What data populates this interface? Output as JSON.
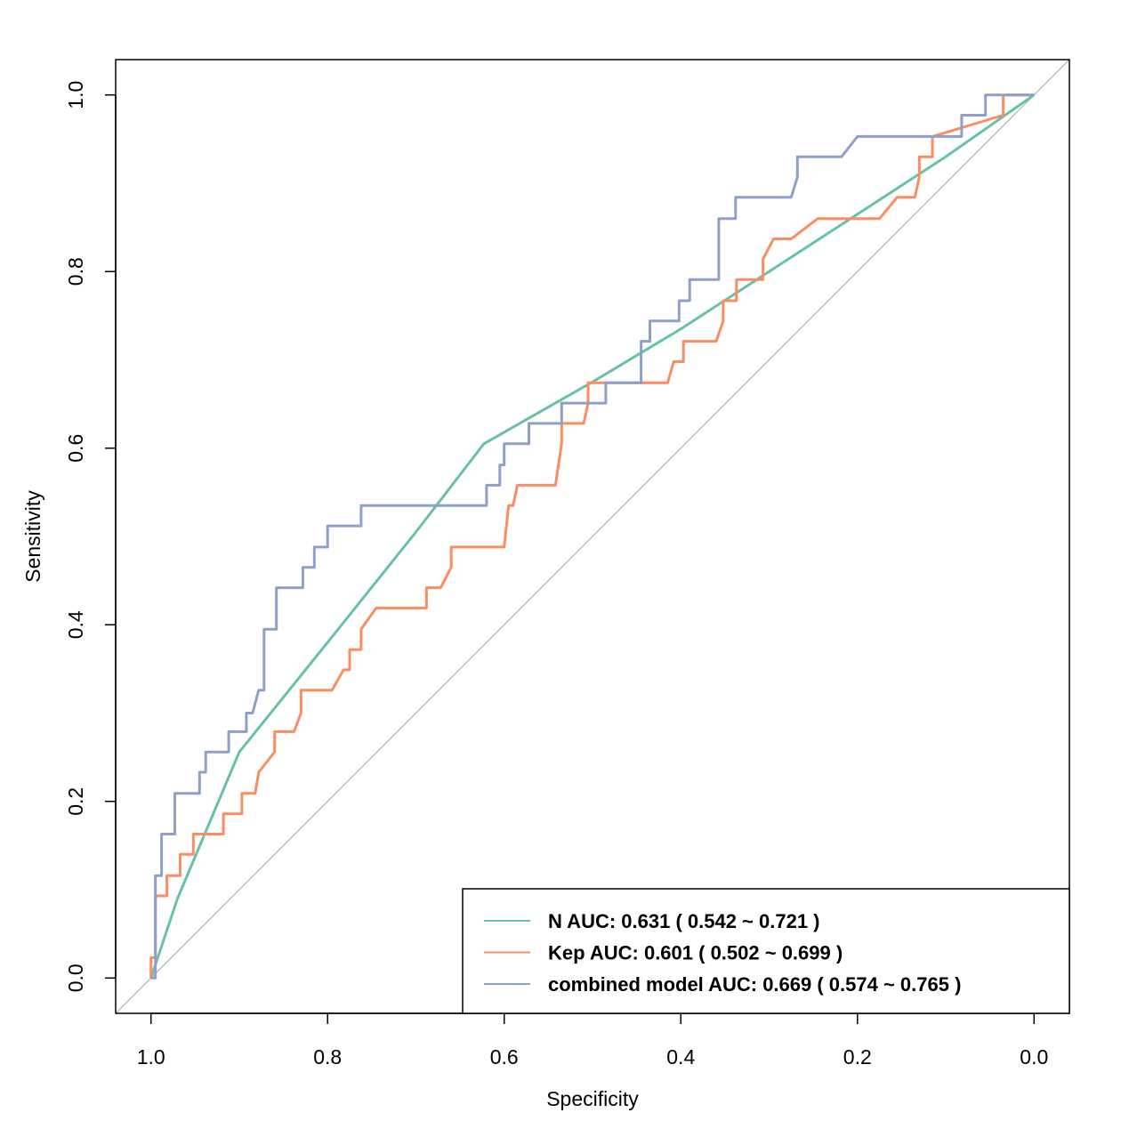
{
  "chart_data": {
    "type": "line",
    "title": "",
    "xlabel": "Specificity",
    "ylabel": "Sensitivity",
    "xlim": [
      1.04,
      -0.04
    ],
    "ylim": [
      -0.04,
      1.04
    ],
    "x_reversed": true,
    "xticks": [
      1.0,
      0.8,
      0.6,
      0.4,
      0.2,
      0.0
    ],
    "xtick_labels": [
      "1.0",
      "0.8",
      "0.6",
      "0.4",
      "0.2",
      "0.0"
    ],
    "yticks": [
      0.0,
      0.2,
      0.4,
      0.6,
      0.8,
      1.0
    ],
    "ytick_labels": [
      "0.0",
      "0.2",
      "0.4",
      "0.6",
      "0.8",
      "1.0"
    ],
    "reference_line": {
      "from": [
        1,
        0
      ],
      "to": [
        0,
        1
      ],
      "color": "#BEBEBE"
    },
    "legend_position": "bottom-right",
    "series": [
      {
        "name": "N",
        "legend_label": "N  AUC: 0.631  ( 0.542 ~ 0.721 )",
        "color": "#66C2A5",
        "x": [
          1.0,
          0.97,
          0.9,
          0.8,
          0.7,
          0.623,
          0.5,
          0.4,
          0.3,
          0.2,
          0.1,
          0.0
        ],
        "y": [
          0.0,
          0.09,
          0.256,
          0.38,
          0.505,
          0.605,
          0.675,
          0.735,
          0.8,
          0.865,
          0.93,
          1.0
        ]
      },
      {
        "name": "Kep",
        "legend_label": "Kep  AUC: 0.601  ( 0.502 ~ 0.699 )",
        "color": "#FC8D62",
        "x": [
          1.0,
          1.0,
          0.995,
          0.995,
          0.982,
          0.982,
          0.967,
          0.967,
          0.952,
          0.952,
          0.918,
          0.918,
          0.897,
          0.897,
          0.882,
          0.878,
          0.86,
          0.86,
          0.838,
          0.83,
          0.83,
          0.795,
          0.782,
          0.775,
          0.775,
          0.762,
          0.762,
          0.745,
          0.688,
          0.688,
          0.672,
          0.66,
          0.66,
          0.6,
          0.595,
          0.59,
          0.585,
          0.585,
          0.542,
          0.535,
          0.535,
          0.51,
          0.505,
          0.505,
          0.49,
          0.49,
          0.415,
          0.408,
          0.408,
          0.397,
          0.397,
          0.36,
          0.352,
          0.352,
          0.337,
          0.337,
          0.307,
          0.307,
          0.295,
          0.295,
          0.275,
          0.245,
          0.188,
          0.175,
          0.155,
          0.135,
          0.13,
          0.13,
          0.115,
          0.115,
          0.035,
          0.035,
          0.0
        ],
        "y": [
          0.0,
          0.023,
          0.023,
          0.093,
          0.093,
          0.116,
          0.116,
          0.14,
          0.14,
          0.163,
          0.163,
          0.186,
          0.186,
          0.209,
          0.209,
          0.233,
          0.256,
          0.279,
          0.279,
          0.3,
          0.326,
          0.326,
          0.349,
          0.349,
          0.372,
          0.372,
          0.395,
          0.419,
          0.419,
          0.442,
          0.442,
          0.465,
          0.488,
          0.488,
          0.535,
          0.535,
          0.558,
          0.558,
          0.558,
          0.605,
          0.628,
          0.628,
          0.651,
          0.674,
          0.674,
          0.674,
          0.674,
          0.698,
          0.698,
          0.698,
          0.721,
          0.721,
          0.744,
          0.767,
          0.767,
          0.791,
          0.791,
          0.814,
          0.837,
          0.837,
          0.837,
          0.86,
          0.86,
          0.86,
          0.884,
          0.884,
          0.907,
          0.93,
          0.93,
          0.953,
          0.977,
          1.0,
          1.0
        ]
      },
      {
        "name": "combined model",
        "legend_label": "combined model  AUC: 0.669  ( 0.574 ~ 0.765 )",
        "color": "#8DA0CB",
        "x": [
          1.0,
          0.995,
          0.995,
          0.988,
          0.988,
          0.973,
          0.973,
          0.945,
          0.945,
          0.938,
          0.938,
          0.912,
          0.912,
          0.892,
          0.892,
          0.885,
          0.878,
          0.872,
          0.872,
          0.858,
          0.858,
          0.828,
          0.828,
          0.815,
          0.815,
          0.8,
          0.8,
          0.762,
          0.762,
          0.62,
          0.62,
          0.605,
          0.605,
          0.6,
          0.6,
          0.572,
          0.572,
          0.535,
          0.535,
          0.51,
          0.51,
          0.485,
          0.485,
          0.445,
          0.445,
          0.435,
          0.435,
          0.402,
          0.402,
          0.39,
          0.39,
          0.357,
          0.357,
          0.338,
          0.338,
          0.275,
          0.268,
          0.268,
          0.218,
          0.2,
          0.082,
          0.082,
          0.055,
          0.055,
          0.0
        ],
        "y": [
          0.0,
          0.0,
          0.116,
          0.116,
          0.163,
          0.163,
          0.209,
          0.209,
          0.233,
          0.233,
          0.256,
          0.256,
          0.279,
          0.279,
          0.3,
          0.3,
          0.326,
          0.326,
          0.395,
          0.395,
          0.442,
          0.442,
          0.465,
          0.465,
          0.488,
          0.488,
          0.512,
          0.512,
          0.535,
          0.535,
          0.558,
          0.558,
          0.581,
          0.581,
          0.605,
          0.605,
          0.628,
          0.628,
          0.651,
          0.651,
          0.651,
          0.651,
          0.674,
          0.674,
          0.721,
          0.721,
          0.744,
          0.744,
          0.767,
          0.767,
          0.791,
          0.791,
          0.86,
          0.86,
          0.884,
          0.884,
          0.907,
          0.93,
          0.93,
          0.953,
          0.953,
          0.977,
          0.977,
          1.0,
          1.0
        ]
      }
    ]
  }
}
